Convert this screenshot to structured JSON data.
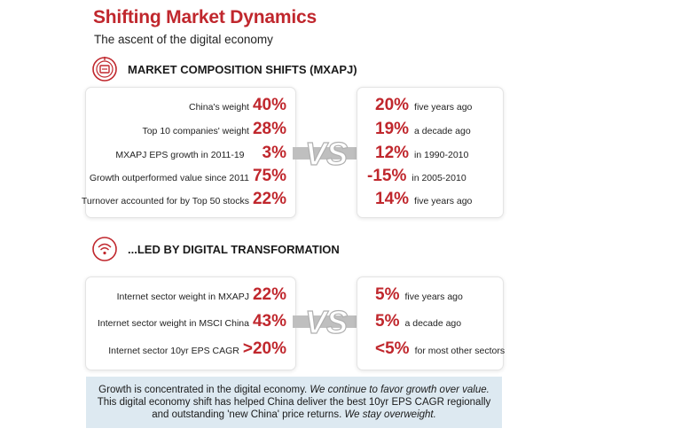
{
  "header": {
    "title": "Shifting Market Dynamics",
    "subtitle": "The ascent of the digital economy"
  },
  "vs_label": "VS",
  "colors": {
    "accent": "#c0272d",
    "banner_bg": "#dde9f1",
    "vs_fill": "#bfbfbf"
  },
  "section1": {
    "icon": "shield-target-icon",
    "title": "MARKET COMPOSITION SHIFTS (MXAPJ)",
    "left": [
      {
        "label": "China's weight",
        "value": "40%"
      },
      {
        "label": "Top 10 companies' weight",
        "value": "28%"
      },
      {
        "label": "MXAPJ EPS growth in 2011-19",
        "value": "3%"
      },
      {
        "label": "Growth outperformed value since 2011",
        "value": "75%"
      },
      {
        "label": "Turnover accounted for by Top 50 stocks",
        "value": "22%"
      }
    ],
    "right": [
      {
        "value": "20%",
        "label": "five years ago"
      },
      {
        "value": "19%",
        "label": "a decade ago"
      },
      {
        "value": "12%",
        "label": "in 1990-2010"
      },
      {
        "value": "-15%",
        "label": "in 2005-2010"
      },
      {
        "value": "14%",
        "label": "five years ago"
      }
    ]
  },
  "section2": {
    "icon": "wifi-globe-icon",
    "title": "...LED BY DIGITAL TRANSFORMATION",
    "left": [
      {
        "label": "Internet sector weight in MXAPJ",
        "value": "22%"
      },
      {
        "label": "Internet sector weight in MSCI China",
        "value": "43%"
      },
      {
        "label": "Internet sector 10yr EPS CAGR",
        "value": ">20%"
      }
    ],
    "right": [
      {
        "value": "5%",
        "label": "five years ago"
      },
      {
        "value": "5%",
        "label": "a decade ago"
      },
      {
        "value": "<5%",
        "label": "for most other sectors"
      }
    ]
  },
  "banner": {
    "line1_plain": "Growth is concentrated in the digital economy. ",
    "line1_italic": "We continue to favor growth over value.",
    "line2": "This digital economy shift has helped China deliver the best 10yr EPS CAGR regionally",
    "line3_plain": "and outstanding 'new China' price returns. ",
    "line3_italic": "We stay overweight."
  }
}
